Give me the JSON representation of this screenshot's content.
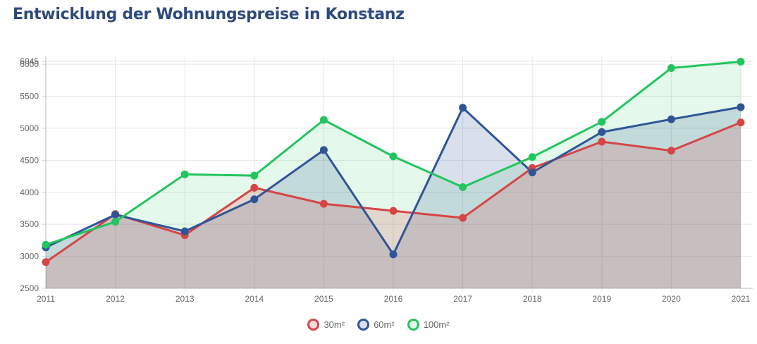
{
  "header": {
    "title": "Entwicklung der Wohnungspreise in Konstanz"
  },
  "chart_data": {
    "type": "area",
    "title": "Entwicklung der Wohnungspreise in Konstanz",
    "xlabel": "",
    "ylabel": "",
    "categories": [
      "2011",
      "2012",
      "2013",
      "2014",
      "2015",
      "2016",
      "2017",
      "2018",
      "2019",
      "2020",
      "2021"
    ],
    "ylim": [
      2500,
      6045
    ],
    "y_ticks": [
      2500,
      3000,
      3500,
      4000,
      4500,
      5000,
      5500,
      6000,
      6045
    ],
    "y_tick_labels": [
      "2500",
      "3000",
      "3500",
      "4000",
      "4500",
      "5000",
      "5500",
      "6000",
      "6045"
    ],
    "grid": true,
    "legend_position": "bottom",
    "series": [
      {
        "name": "30m²",
        "color": "#d64545",
        "fill": "rgba(214,69,69,0.18)",
        "values": [
          2910,
          3660,
          3330,
          4070,
          3820,
          3710,
          3600,
          4380,
          4790,
          4650,
          5090
        ]
      },
      {
        "name": "60m²",
        "color": "#2f5597",
        "fill": "rgba(47,85,151,0.18)",
        "values": [
          3140,
          3650,
          3390,
          3890,
          4660,
          3030,
          5320,
          4310,
          4940,
          5140,
          5330
        ]
      },
      {
        "name": "100m²",
        "color": "#22c55e",
        "fill": "rgba(34,197,94,0.12)",
        "values": [
          3180,
          3540,
          4280,
          4260,
          5130,
          4560,
          4080,
          4550,
          5100,
          5940,
          6040
        ]
      }
    ]
  }
}
